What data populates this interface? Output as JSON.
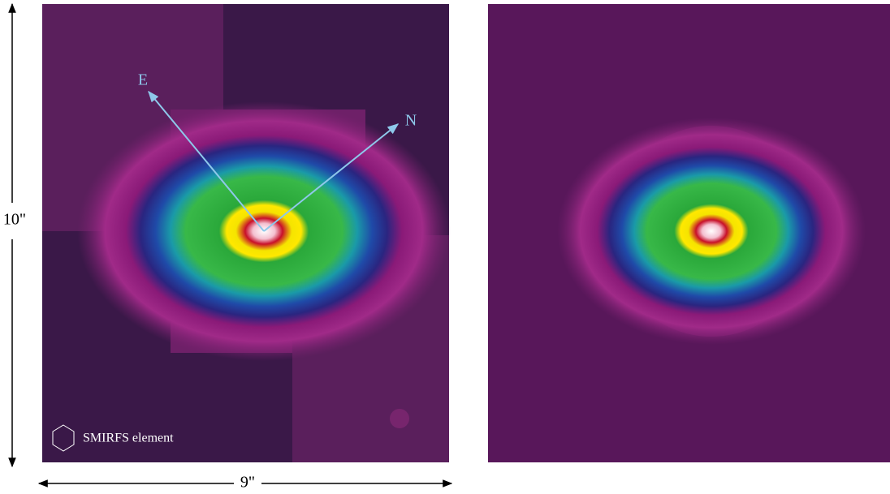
{
  "labels": {
    "east": "E",
    "north": "N",
    "height": "10\"",
    "width": "9\"",
    "legend": "SMIRFS element"
  }
}
